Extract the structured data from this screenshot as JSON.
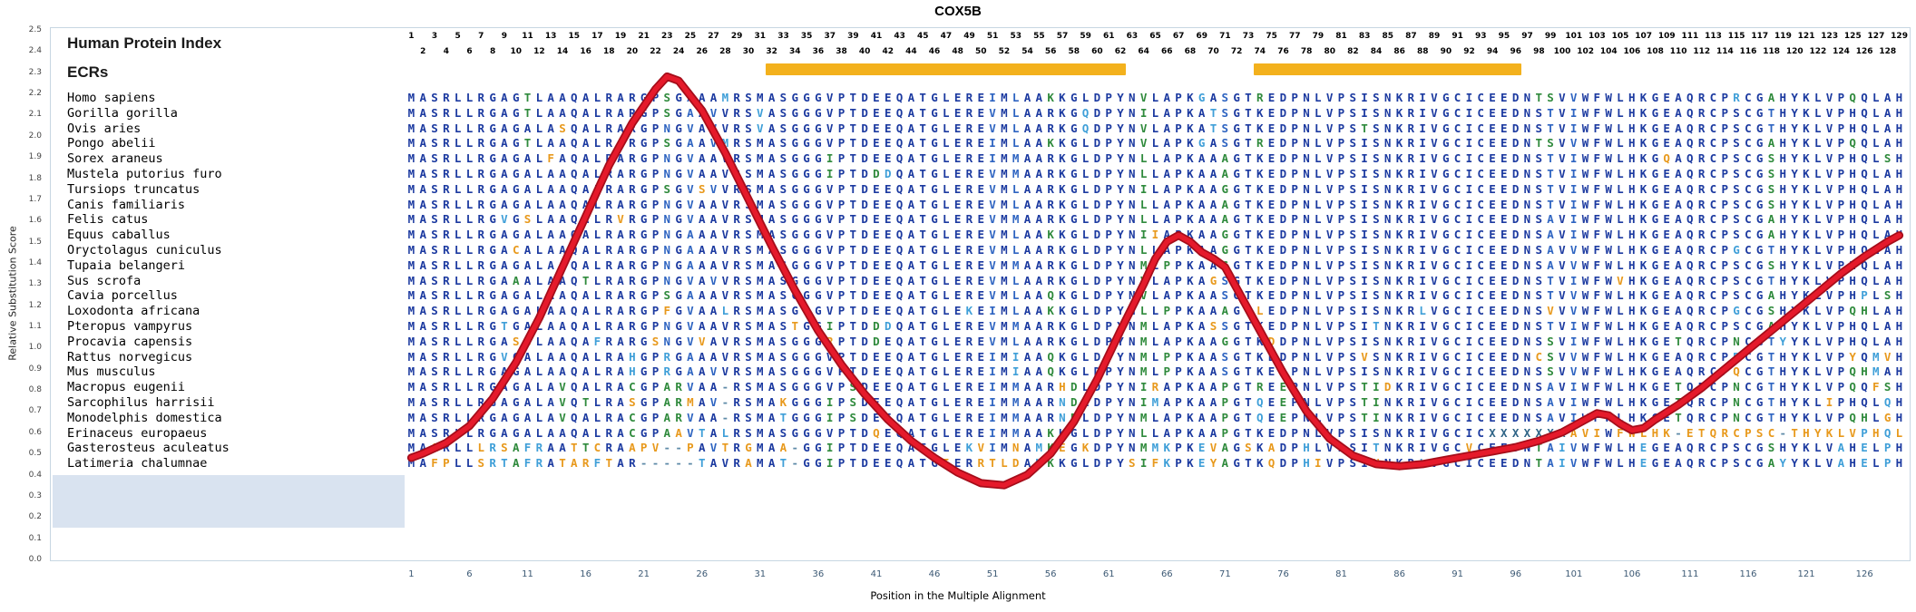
{
  "title": "COX5B",
  "header": {
    "human_protein_index_label": "Human Protein Index",
    "ecrs_label": "ECRs"
  },
  "y_axis": {
    "label": "Relative Substitution Score",
    "min": 0.0,
    "max": 2.5,
    "ticks": [
      "0.0",
      "0.1",
      "0.2",
      "0.3",
      "0.4",
      "0.5",
      "0.6",
      "0.7",
      "0.8",
      "0.9",
      "1.0",
      "1.1",
      "1.2",
      "1.3",
      "1.4",
      "1.5",
      "1.6",
      "1.7",
      "1.8",
      "1.9",
      "2.0",
      "2.1",
      "2.2",
      "2.3",
      "2.4",
      "2.5"
    ]
  },
  "x_axis": {
    "label": "Position in the Multiple Alignment",
    "ticks": [
      1,
      6,
      11,
      16,
      21,
      26,
      31,
      36,
      41,
      46,
      51,
      56,
      61,
      66,
      71,
      76,
      81,
      86,
      91,
      96,
      101,
      106,
      111,
      116,
      121,
      126
    ]
  },
  "alignment": {
    "length": 129,
    "position_numbers": {
      "odd": [
        1,
        3,
        5,
        7,
        9,
        11,
        13,
        15,
        17,
        19,
        21,
        23,
        25,
        27,
        29,
        31,
        33,
        35,
        37,
        39,
        41,
        43,
        45,
        47,
        49,
        51,
        53,
        55,
        57,
        59,
        61,
        63,
        65,
        67,
        69,
        71,
        73,
        75,
        77,
        79,
        81,
        83,
        85,
        87,
        89,
        91,
        93,
        95,
        97,
        99,
        101,
        103,
        105,
        107,
        109,
        111,
        113,
        115,
        117,
        119,
        121,
        123,
        125,
        127,
        129
      ],
      "even": [
        2,
        4,
        6,
        8,
        10,
        12,
        14,
        16,
        18,
        20,
        22,
        24,
        26,
        28,
        30,
        32,
        34,
        36,
        38,
        40,
        42,
        44,
        46,
        48,
        50,
        52,
        54,
        56,
        58,
        60,
        62,
        64,
        66,
        68,
        70,
        72,
        74,
        76,
        78,
        80,
        82,
        84,
        86,
        88,
        90,
        92,
        94,
        96,
        98,
        100,
        102,
        104,
        106,
        108,
        110,
        112,
        114,
        116,
        118,
        120,
        122,
        124,
        126,
        128
      ]
    }
  },
  "ecrs": [
    {
      "from": 32,
      "to": 62
    },
    {
      "from": 74,
      "to": 96
    }
  ],
  "species": [
    {
      "name": "Homo sapiens",
      "sequence": "MASRLLRGAGTLAAQALRARGPSGAAAMRSMASGGGVPTDEEQATGLEREIMLAAKKGLDPYNVLAPKGASGTREDPNLVPSISNKRIVGCICEEDNTSVVWFWLHKGEAQRCPRCGAHYKLVPQQLAH"
    },
    {
      "name": "Gorilla gorilla",
      "sequence": "MASRLLRGAGTLAAQALRARGPSGAAVVRSVASGGGVPTDEEQATGLEREVMLAARKGQDPYNILAPKATSGTKEDPNLVPSISNKRIVGCICEEDNSTVIWFWLHKGEAQRCPSCGTHYKLVPHQLAH"
    },
    {
      "name": "Ovis aries",
      "sequence": "MASRLLRGAGALASQALRARGPNGVAVVRSVASGGGVPTDEEQATGLEREVMLAARKGQDPYNVLAPKATSGTKEDPNLVPSTSNKRIVGCICEEDNSTVIWFWLHKGEAQRCPSCGTHYKLVPHQLAH"
    },
    {
      "name": "Pongo abelii",
      "sequence": "MASRLLRGAGTLAAQALRARGPSGAAVMRSMASGGGVPTDEEQATGLEREIMLAAKKGLDPYNVLAPKGASGTREDPNLVPSISNKRIVGCICEEDNTSVVWFWLHKGEAQRCPSCGAHYKLVPQQLAH"
    },
    {
      "name": "Sorex araneus",
      "sequence": "MASRLLRGAGALFAQALRARGPNGVAAVRSMASGGGIPTDEEQATGLEREIMMAARKGLDPYNLLAPKAAAGTKEDPNLVPSISNKRIVGCICEEDNSTVIWFWLHKGQAQRCPSCGSHYKLVPHQLSH"
    },
    {
      "name": "Mustela putorius furo",
      "sequence": "MASRLLRGAGALAAQALRARGPNGVAAVRSMASGGGIPTDDDQATGLEREVMMAARKGLDPYNLLAPKAAAGTKEDPNLVPSISNKRIVGCICEEDNSTVIWFWLHKGEAQRCPSCGSHYKLVPHQLAH"
    },
    {
      "name": "Tursiops truncatus",
      "sequence": "MASRLLRGAGALAAQALRARGPSGVSVVRSMASGGGVPTDEEQATGLEREVMLAARKGLDPYNILAPKAAGGTKEDPNLVPSISNKRIVGCICEEDNSTVIWFWLHKGEAQRCPSCGSHYKLVPHQLAH"
    },
    {
      "name": "Canis familiaris",
      "sequence": "MASRLLRGAGALAAQALRARGPNGVAAVRSMASGGGVPTDEEQATGLEREVMLAARKGLDPYNLLAPKAAAGTKEDPNLVPSISNKRIVGCICEEDNSTVIWFWLHKGEAQRCPSCGSHYKLVPHQLAH"
    },
    {
      "name": "Felis catus",
      "sequence": "MASRLLRGVGSLAAQALRVRGPNGVAAVRSMASGGGVPTDEEQATGLEREVMMAARKGLDPYNLLAPKAAAGTKEDPNLVPSISNKRIVGCICEEDNSAVIWFWLHKGEAQRCPSCGAHYKLVPHQLAH"
    },
    {
      "name": "Equus caballus",
      "sequence": "MASRLLRGAGALAAQALRARGPNGAAAVRSMASGGGVPTDEEQATGLEREVMLAAKKGLDPYNIIAPKAAGGTKEDPNLVPSISNKRIVGCICEEDNSAVIWFWLHKGEAQRCPSCGAHYKLVPHQLAH"
    },
    {
      "name": "Oryctolagus cuniculus",
      "sequence": "MASRLLRGACALAAQALRARGPNGAAAVRSMASGGGVPTDEEQATGLEREVMLAARKGLDPYNLLAPKAAGGTKEDPNLVPSISNKRIVGCICEEDNSAVVWFWLHKGEAQRCPGCGTHYKLVPHQLAH"
    },
    {
      "name": "Tupaia belangeri",
      "sequence": "MASRLLRGAGALAAQALRARGPNGAAAVRSMASGGGVPTDEEQATGLEREVMMAARKGLDPYNMLPPKAAGGTKEDPNLVPSISNKRIVGCICEEDNSAVVWFWLHKGEAQRCPSCGSHYKLVPHQLAH"
    },
    {
      "name": "Sus scrofa",
      "sequence": "MASRLLRGAAALAAQTLRARGPNGVAVVRSMASGGGVPTDEEQATGLEREVMLAARKGLDPYNVLAPKAGSGTKEDPNLVPSISNKRIVGCICEEDNSTVIWFWVHKGEAQRCPSCGTHYKLVPHQLAH"
    },
    {
      "name": "Cavia porcellus",
      "sequence": "MASRLLRGAGALAAQALRARGPSGAAAVRSMASGGGVPTDEEQATGLEREVMLAAQKGLDPYNVLAPKAASGTKEDPNLVPSISNKRIVGCICEEDNSTVVWFWLHKGEAQRCPSCGAHYKLVPHPLSH"
    },
    {
      "name": "Loxodonta africana",
      "sequence": "MASRLLRGAGALAAQALRARGPFGVAALRSMASGGGVPTDEEQATGLEKEIMLAAKKGLDPYNLLPPKAAAGTLEDPNLVPSISNKRLVGCICEEDNSVVVWFWLHKGEAQRCPGCGSHYKLVPQHLAH"
    },
    {
      "name": "Pteropus vampyrus",
      "sequence": "MASRLLRGTGALAAQALRARGPNGVAAVRSMASTGGIPTDDDQATGLEREVMMAARKGLDPYNMLAPKASSGTKEDPNLVPSITNKRIVGCICEEDNSTVIWFWLHKGEAQRCPSCGAHYKLVPHQLAH"
    },
    {
      "name": "Procavia capensis",
      "sequence": "MASRLLRGASGLAAQAFRARGSNGVVAVRSMASGGGRPTDDEQATGLEREVMLAARKGLDPYNMLAPKAAGGTKDDPNLVPSISNKRIVGCICEEDNSSVIWFWLHKGETQRCPNCGTYYKLVPHQLAH"
    },
    {
      "name": "Rattus norvegicus",
      "sequence": "MASRLLRGVGALAAQALRAHGPRGAAAVRSMASGGGVPTDEEQATGLEREIMIAAQKGLDPYNMLPPKAASGTKEDPNLVPSVSNKRIVGCICEEDNCSVVWFWLHKGEAQRCPRCGTHYKLVPYQMVH"
    },
    {
      "name": "Mus musculus",
      "sequence": "MASRLLRGAGALAAQALRAHGPRGAAVVRSMASGGGVPTDEEQATGLEREIMIAAQKGLDPYNMLPPKAASGTKEDPNLVPSISNKRIVGCICEEDNSSVVWFWLHKGEAQRCPQCGTHYKLVPQHMAH"
    },
    {
      "name": "Macropus eugenii",
      "sequence": "MASRLLRGAGALAVQALRACGPARVAA-RSMASGGGVPSDEEQATGLEREIMMAARHDLDPYNIRAPKAAPGTREEPNLVPSTIDKRIVGCICEEDNSAVIWFWLHKGETQRCPNCGTHYKLVPQQFSH"
    },
    {
      "name": "Sarcophilus harrisii",
      "sequence": "MASRLLRGAGALAVQTLRASGPARMAV-RSMAKGGGIPSDEEQATGLEREIMMAARNDLDPYNIMAPKAAPGTQEEPNLVPSTINKRIVGCICEEDNSAVIWFWLHKGETQRCPNCGTHYKLIPHQLQH"
    },
    {
      "name": "Monodelphis domestica",
      "sequence": "MASRLLRGAGALAVQALRACGPARVAA-RSMATGGGIPSDEEQATGLEREIMMAARNDLDPYNMLAPKAAPGTQEEPNLVPSTINKRIVGCICEEDNSAVIWFWLHKGETQRCPNCGTHYKLVPQHLGH"
    },
    {
      "name": "Erinaceus europa­eus",
      "sequence": "MASRLLRGAGALAAQALRACGPAAVTALRSMASGGGVPTDQEQATGLEREIMMAAKKGLDPYNLLAPKAAPGTKEDPNLVPSISNKRIVGCICXXXXXXXAVIWFWLHK-ETQRCPSC-THYKLVPHQL"
    },
    {
      "name": "Gasterosteus aculeatus",
      "sequence": "MAARLLLRSAFRAATTCRAAPV--PAVTRGMAA-GGIPTDEEQATGLEKVIMNAMKEGKDPYNMMKPKEVAGSKADPHLVPSITNKRIVGCVCEEDNTAIVWFWLHEGEAQRCPSCGSHYKLVAHELPH"
    },
    {
      "name": "Latimeria chalumnae",
      "sequence": "MAFPLLSRTAFRATARFTAR-----TAVRAMAT-GGIPTDEEQATGIERRTLDAMKKGLDPYSIFKPKEYAGTKQDPHIVPSINNKRLVGCICEEDNTAIVWFWLHEGEAQRCPSCGAYYKLVAHELPH"
    }
  ],
  "colors": {
    "conserved": "#1c3aa0",
    "majority": "#2e64c1",
    "variant": "#2f8a3c",
    "rare": "#3f9fd8",
    "unique": "#e8991c",
    "gap": "#5f8ba8",
    "unknown": "#2e6486",
    "ecr_bar": "#f3b11d",
    "curve": "#e51a2b",
    "curve_edge": "#a50d1a"
  },
  "chart_data": {
    "type": "line",
    "title": "COX5B",
    "xlabel": "Position in the Multiple Alignment",
    "ylabel": "Relative Substitution Score",
    "xlim": [
      1,
      129
    ],
    "ylim": [
      0,
      2.5
    ],
    "grid": false,
    "legend_position": "none",
    "ecr_regions": [
      [
        32,
        62
      ],
      [
        74,
        96
      ]
    ],
    "series": [
      {
        "name": "Relative Substitution Score",
        "color": "#e51a2b",
        "points": [
          [
            1,
            0.48
          ],
          [
            2,
            0.5
          ],
          [
            4,
            0.55
          ],
          [
            6,
            0.63
          ],
          [
            8,
            0.76
          ],
          [
            10,
            0.93
          ],
          [
            12,
            1.14
          ],
          [
            14,
            1.38
          ],
          [
            16,
            1.62
          ],
          [
            18,
            1.86
          ],
          [
            20,
            2.06
          ],
          [
            22,
            2.22
          ],
          [
            23,
            2.28
          ],
          [
            24,
            2.26
          ],
          [
            26,
            2.12
          ],
          [
            28,
            1.92
          ],
          [
            30,
            1.7
          ],
          [
            32,
            1.48
          ],
          [
            34,
            1.27
          ],
          [
            36,
            1.08
          ],
          [
            38,
            0.92
          ],
          [
            40,
            0.78
          ],
          [
            42,
            0.66
          ],
          [
            44,
            0.56
          ],
          [
            46,
            0.48
          ],
          [
            48,
            0.41
          ],
          [
            50,
            0.36
          ],
          [
            52,
            0.35
          ],
          [
            54,
            0.4
          ],
          [
            56,
            0.5
          ],
          [
            58,
            0.65
          ],
          [
            60,
            0.85
          ],
          [
            62,
            1.08
          ],
          [
            64,
            1.3
          ],
          [
            65,
            1.42
          ],
          [
            66,
            1.5
          ],
          [
            67,
            1.53
          ],
          [
            68,
            1.5
          ],
          [
            69,
            1.45
          ],
          [
            70,
            1.42
          ],
          [
            71,
            1.38
          ],
          [
            72,
            1.28
          ],
          [
            74,
            1.08
          ],
          [
            76,
            0.88
          ],
          [
            78,
            0.7
          ],
          [
            80,
            0.57
          ],
          [
            82,
            0.49
          ],
          [
            84,
            0.45
          ],
          [
            86,
            0.44
          ],
          [
            88,
            0.45
          ],
          [
            90,
            0.47
          ],
          [
            92,
            0.49
          ],
          [
            94,
            0.51
          ],
          [
            96,
            0.53
          ],
          [
            98,
            0.56
          ],
          [
            100,
            0.6
          ],
          [
            102,
            0.66
          ],
          [
            103,
            0.69
          ],
          [
            104,
            0.68
          ],
          [
            105,
            0.64
          ],
          [
            106,
            0.61
          ],
          [
            107,
            0.62
          ],
          [
            108,
            0.66
          ],
          [
            110,
            0.73
          ],
          [
            112,
            0.81
          ],
          [
            114,
            0.9
          ],
          [
            116,
            0.99
          ],
          [
            118,
            1.08
          ],
          [
            120,
            1.17
          ],
          [
            122,
            1.26
          ],
          [
            124,
            1.35
          ],
          [
            126,
            1.43
          ],
          [
            128,
            1.5
          ],
          [
            129,
            1.53
          ]
        ]
      }
    ]
  }
}
